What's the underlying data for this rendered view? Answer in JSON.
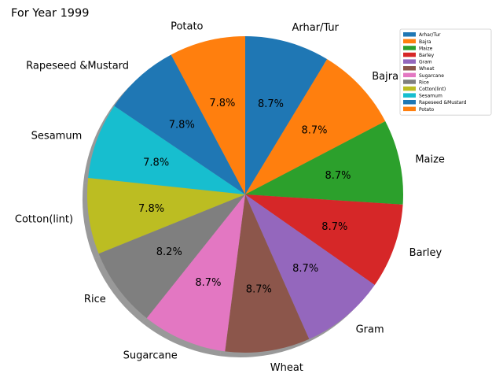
{
  "chart_data": {
    "type": "pie",
    "title": "For Year 1999",
    "shadow": true,
    "legend_position": "top-right",
    "categories": [
      "Arhar/Tur",
      "Bajra",
      "Maize",
      "Barley",
      "Gram",
      "Wheat",
      "Sugarcane",
      "Rice",
      "Cotton(lint)",
      "Sesamum",
      "Rapeseed &Mustard",
      "Potato"
    ],
    "values": [
      8.7,
      8.7,
      8.7,
      8.7,
      8.7,
      8.7,
      8.7,
      8.2,
      7.8,
      7.8,
      7.8,
      7.8
    ],
    "percent_labels": [
      "8.7%",
      "8.7%",
      "8.7%",
      "8.7%",
      "8.7%",
      "8.7%",
      "8.7%",
      "8.2%",
      "7.8%",
      "7.8%",
      "7.8%",
      "7.8%"
    ],
    "colors": [
      "#1f77b4",
      "#ff7f0e",
      "#2ca02c",
      "#d62728",
      "#9467bd",
      "#8c564b",
      "#e377c2",
      "#7f7f7f",
      "#bcbd22",
      "#17becf",
      "#1f77b4",
      "#ff7f0e"
    ]
  }
}
